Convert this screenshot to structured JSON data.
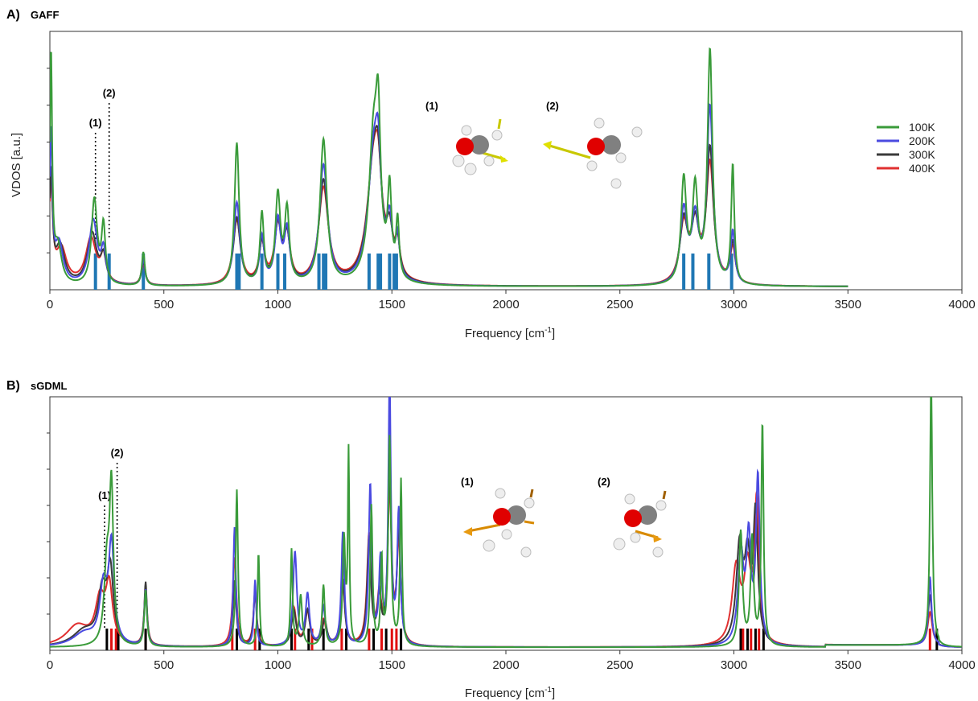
{
  "chart_data": [
    {
      "type": "line",
      "panel_label": "A)",
      "title": "GAFF",
      "xlabel": "Frequency [cm",
      "xlabel_sup": "-1",
      "xlabel_suffix": "]",
      "ylabel": "VDOS [a.u.]",
      "xlim": [
        0,
        4000
      ],
      "ylim": [
        0,
        1.0
      ],
      "x_ticks": [
        "0",
        "500",
        "1000",
        "1500",
        "2000",
        "2500",
        "3000",
        "3500",
        "4000"
      ],
      "grid": false,
      "legend_position": "right",
      "annotations": [
        {
          "label": "(1)",
          "x": 200
        },
        {
          "label": "(2)",
          "x": 260
        }
      ],
      "inset_labels": [
        "(1)",
        "(2)"
      ],
      "stick_spectrum": {
        "color": "#1f77b4",
        "x": [
          200,
          260,
          410,
          820,
          830,
          930,
          1000,
          1030,
          1180,
          1200,
          1210,
          1400,
          1440,
          1450,
          1490,
          1510,
          1520,
          2780,
          2820,
          2890,
          2990
        ]
      },
      "series": [
        {
          "name": "100K",
          "color": "#3a9b3a",
          "peaks": [
            [
              5,
              0.88,
              6
            ],
            [
              35,
              0.15,
              20
            ],
            [
              195,
              0.33,
              15
            ],
            [
              235,
              0.22,
              10
            ],
            [
              410,
              0.13,
              8
            ],
            [
              820,
              0.55,
              12
            ],
            [
              930,
              0.27,
              10
            ],
            [
              1000,
              0.34,
              13
            ],
            [
              1040,
              0.28,
              12
            ],
            [
              1200,
              0.56,
              18
            ],
            [
              1420,
              0.56,
              25
            ],
            [
              1440,
              0.45,
              12
            ],
            [
              1490,
              0.33,
              10
            ],
            [
              1525,
              0.22,
              8
            ],
            [
              2780,
              0.4,
              14
            ],
            [
              2830,
              0.36,
              14
            ],
            [
              2895,
              0.9,
              13
            ],
            [
              2995,
              0.46,
              8
            ]
          ]
        },
        {
          "name": "200K",
          "color": "#4a4ae0",
          "peaks": [
            [
              5,
              0.58,
              7
            ],
            [
              40,
              0.16,
              22
            ],
            [
              190,
              0.25,
              22
            ],
            [
              235,
              0.12,
              12
            ],
            [
              410,
              0.1,
              9
            ],
            [
              820,
              0.32,
              16
            ],
            [
              930,
              0.18,
              12
            ],
            [
              1000,
              0.24,
              15
            ],
            [
              1040,
              0.2,
              14
            ],
            [
              1200,
              0.46,
              22
            ],
            [
              1420,
              0.48,
              30
            ],
            [
              1440,
              0.3,
              15
            ],
            [
              1490,
              0.2,
              14
            ],
            [
              1525,
              0.15,
              10
            ],
            [
              2780,
              0.28,
              18
            ],
            [
              2830,
              0.24,
              18
            ],
            [
              2895,
              0.68,
              16
            ],
            [
              2995,
              0.2,
              11
            ]
          ]
        },
        {
          "name": "300K",
          "color": "#3a3a3a",
          "peaks": [
            [
              5,
              0.42,
              8
            ],
            [
              45,
              0.15,
              25
            ],
            [
              185,
              0.2,
              25
            ],
            [
              235,
              0.1,
              14
            ],
            [
              410,
              0.09,
              10
            ],
            [
              820,
              0.26,
              18
            ],
            [
              930,
              0.16,
              14
            ],
            [
              1000,
              0.22,
              17
            ],
            [
              1040,
              0.18,
              16
            ],
            [
              1200,
              0.4,
              24
            ],
            [
              1420,
              0.46,
              33
            ],
            [
              1440,
              0.24,
              17
            ],
            [
              1490,
              0.16,
              16
            ],
            [
              1525,
              0.13,
              12
            ],
            [
              2780,
              0.24,
              20
            ],
            [
              2830,
              0.22,
              20
            ],
            [
              2895,
              0.52,
              18
            ],
            [
              2995,
              0.16,
              13
            ]
          ]
        },
        {
          "name": "400K",
          "color": "#e03030",
          "peaks": [
            [
              5,
              0.38,
              9
            ],
            [
              50,
              0.14,
              28
            ],
            [
              180,
              0.18,
              28
            ],
            [
              235,
              0.1,
              15
            ],
            [
              410,
              0.08,
              11
            ],
            [
              820,
              0.25,
              20
            ],
            [
              930,
              0.15,
              15
            ],
            [
              1000,
              0.21,
              19
            ],
            [
              1040,
              0.17,
              17
            ],
            [
              1200,
              0.37,
              26
            ],
            [
              1420,
              0.45,
              35
            ],
            [
              1440,
              0.22,
              18
            ],
            [
              1490,
              0.15,
              17
            ],
            [
              1525,
              0.12,
              13
            ],
            [
              2780,
              0.22,
              22
            ],
            [
              2830,
              0.21,
              22
            ],
            [
              2895,
              0.46,
              20
            ],
            [
              2995,
              0.14,
              14
            ]
          ]
        }
      ]
    },
    {
      "type": "line",
      "panel_label": "B)",
      "title": "sGDML",
      "xlabel": "Frequency [cm",
      "xlabel_sup": "-1",
      "xlabel_suffix": "]",
      "xlim": [
        0,
        4000
      ],
      "ylim": [
        0,
        1.0
      ],
      "x_ticks": [
        "0",
        "500",
        "1000",
        "1500",
        "2000",
        "2500",
        "3000",
        "3500",
        "4000"
      ],
      "grid": false,
      "annotations": [
        {
          "label": "(1)",
          "x": 240
        },
        {
          "label": "(2)",
          "x": 295
        }
      ],
      "inset_labels": [
        "(1)",
        "(2)"
      ],
      "stick_spectrum_black": {
        "color": "#000000",
        "x": [
          250,
          300,
          420,
          820,
          920,
          1060,
          1135,
          1200,
          1300,
          1420,
          1475,
          1540,
          3030,
          3060,
          3095,
          3130,
          3890
        ]
      },
      "stick_spectrum_red": {
        "color": "#e01010",
        "x": [
          270,
          290,
          420,
          800,
          900,
          1075,
          1150,
          1280,
          1400,
          1455,
          1500,
          1520,
          3040,
          3075,
          3110,
          3860
        ]
      },
      "series": [
        {
          "name": "100K",
          "color": "#3a9b3a",
          "peaks": [
            [
              250,
              0.3,
              14
            ],
            [
              270,
              0.6,
              10
            ],
            [
              420,
              0.22,
              7
            ],
            [
              820,
              0.62,
              6
            ],
            [
              915,
              0.37,
              5
            ],
            [
              1060,
              0.38,
              5
            ],
            [
              1100,
              0.2,
              8
            ],
            [
              1200,
              0.24,
              7
            ],
            [
              1290,
              0.42,
              7
            ],
            [
              1310,
              0.75,
              4
            ],
            [
              1410,
              0.55,
              6
            ],
            [
              1455,
              0.34,
              5
            ],
            [
              1490,
              0.82,
              7
            ],
            [
              1540,
              0.65,
              5
            ],
            [
              3030,
              0.45,
              9
            ],
            [
              3080,
              0.42,
              8
            ],
            [
              3125,
              0.88,
              6
            ],
            [
              3865,
              1.05,
              6
            ]
          ]
        },
        {
          "name": "200K",
          "color": "#4a4ae0",
          "peaks": [
            [
              150,
              0.05,
              60
            ],
            [
              235,
              0.22,
              20
            ],
            [
              270,
              0.38,
              14
            ],
            [
              420,
              0.22,
              7
            ],
            [
              810,
              0.47,
              7
            ],
            [
              900,
              0.26,
              6
            ],
            [
              1075,
              0.37,
              10
            ],
            [
              1130,
              0.2,
              10
            ],
            [
              1200,
              0.15,
              10
            ],
            [
              1285,
              0.45,
              8
            ],
            [
              1405,
              0.63,
              8
            ],
            [
              1450,
              0.32,
              8
            ],
            [
              1490,
              1.02,
              7
            ],
            [
              1530,
              0.52,
              8
            ],
            [
              3030,
              0.36,
              15
            ],
            [
              3065,
              0.4,
              12
            ],
            [
              3105,
              0.65,
              10
            ],
            [
              3860,
              0.27,
              8
            ]
          ]
        },
        {
          "name": "300K",
          "color": "#3a3a3a",
          "peaks": [
            [
              150,
              0.06,
              60
            ],
            [
              230,
              0.2,
              22
            ],
            [
              265,
              0.28,
              16
            ],
            [
              420,
              0.25,
              7
            ],
            [
              810,
              0.26,
              9
            ],
            [
              900,
              0.22,
              8
            ],
            [
              1070,
              0.14,
              12
            ],
            [
              1130,
              0.14,
              12
            ],
            [
              1205,
              0.1,
              12
            ],
            [
              1285,
              0.26,
              10
            ],
            [
              1400,
              0.42,
              10
            ],
            [
              1445,
              0.18,
              10
            ],
            [
              1490,
              0.67,
              9
            ],
            [
              1530,
              0.45,
              9
            ],
            [
              3025,
              0.38,
              18
            ],
            [
              3060,
              0.3,
              15
            ],
            [
              3095,
              0.5,
              12
            ],
            [
              3860,
              0.2,
              10
            ]
          ]
        },
        {
          "name": "400K",
          "color": "#e03030",
          "peaks": [
            [
              120,
              0.08,
              60
            ],
            [
              220,
              0.17,
              25
            ],
            [
              260,
              0.22,
              18
            ],
            [
              420,
              0.22,
              8
            ],
            [
              810,
              0.35,
              10
            ],
            [
              900,
              0.2,
              9
            ],
            [
              1070,
              0.15,
              13
            ],
            [
              1130,
              0.13,
              13
            ],
            [
              1200,
              0.1,
              13
            ],
            [
              1285,
              0.24,
              11
            ],
            [
              1400,
              0.43,
              11
            ],
            [
              1445,
              0.18,
              11
            ],
            [
              1490,
              0.6,
              10
            ],
            [
              1530,
              0.4,
              10
            ],
            [
              3010,
              0.3,
              22
            ],
            [
              3060,
              0.28,
              18
            ],
            [
              3100,
              0.55,
              12
            ],
            [
              3860,
              0.13,
              12
            ]
          ]
        }
      ]
    }
  ],
  "legend": [
    {
      "name": "100K",
      "color": "#3a9b3a"
    },
    {
      "name": "200K",
      "color": "#4a4ae0"
    },
    {
      "name": "300K",
      "color": "#3a3a3a"
    },
    {
      "name": "400K",
      "color": "#e03030"
    }
  ]
}
